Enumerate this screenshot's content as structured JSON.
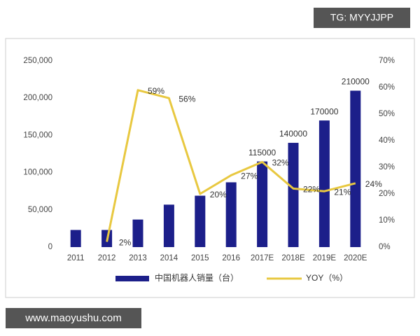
{
  "chart_data": {
    "type": "bar-line",
    "watermark_top": "TG: MYYJJPP",
    "watermark_bottom": "www.maoyushu.com",
    "categories": [
      "2011",
      "2012",
      "2013",
      "2014",
      "2015",
      "2016",
      "2017E",
      "2018E",
      "2019E",
      "2020E"
    ],
    "series": [
      {
        "name": "中国机器人销量（台）",
        "type": "bar",
        "color": "#1c1f8a",
        "values": [
          23000,
          23000,
          37000,
          57000,
          69000,
          87000,
          115000,
          140000,
          170000,
          210000
        ],
        "value_labels": [
          null,
          null,
          null,
          null,
          null,
          null,
          "115000",
          "140000",
          "170000",
          "210000"
        ]
      },
      {
        "name": "YOY（%）",
        "type": "line",
        "axis": "y2",
        "color": "#e8c840",
        "values": [
          null,
          2,
          59,
          56,
          20,
          27,
          32,
          22,
          21,
          24
        ],
        "value_labels": [
          null,
          "2%",
          "59%",
          "56%",
          "20%",
          "27%",
          "32%",
          "22%",
          "21%",
          "24%"
        ]
      }
    ],
    "ylim": [
      0,
      250000
    ],
    "yticks": [
      0,
      {
        "value": 50000,
        "label": "50,000"
      },
      {
        "value": 100000,
        "label": "100,000"
      },
      {
        "value": 150000,
        "label": "150,000"
      },
      {
        "value": 200000,
        "label": "200,000"
      },
      {
        "value": 250000,
        "label": "250,000"
      }
    ],
    "y2lim": [
      0,
      70
    ],
    "y2ticks": [
      {
        "value": 0,
        "label": "0%"
      },
      {
        "value": 10,
        "label": "10%"
      },
      {
        "value": 20,
        "label": "20%"
      },
      {
        "value": 30,
        "label": "30%"
      },
      {
        "value": 40,
        "label": "40%"
      },
      {
        "value": 50,
        "label": "50%"
      },
      {
        "value": 60,
        "label": "60%"
      },
      {
        "value": 70,
        "label": "70%"
      }
    ],
    "legend": "bottom"
  }
}
